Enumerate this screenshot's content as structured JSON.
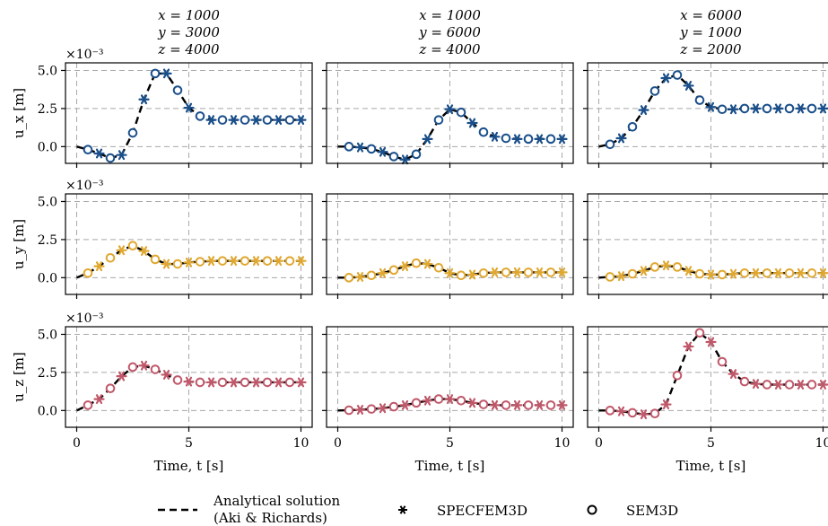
{
  "legend": {
    "analytical_line1": "Analytical solution",
    "analytical_line2": "(Aki & Richards)",
    "specfem": "SPECFEM3D",
    "sem": "SEM3D"
  },
  "chart_data": {
    "type": "line",
    "x_label": "Time, t  [s]",
    "y_labels": [
      "u_x  [m]",
      "u_y  [m]",
      "u_z  [m]"
    ],
    "y_scale_label": "×10⁻³",
    "xlim": [
      -0.5,
      10.5
    ],
    "ylim": [
      -1.1,
      5.5
    ],
    "x_ticks": [
      0,
      5,
      10
    ],
    "y_ticks": [
      0.0,
      2.5,
      5.0
    ],
    "y_tick_labels": [
      "0.0",
      "2.5",
      "5.0"
    ],
    "grid": true,
    "legend_position": "bottom",
    "series_colors": {
      "u_x": "#1a4f8a",
      "u_y": "#e0a830",
      "u_z": "#c0586a"
    },
    "columns": [
      {
        "title_lines": [
          "x = 1000",
          "y = 3000",
          "z = 4000"
        ]
      },
      {
        "title_lines": [
          "x = 1000",
          "y = 6000",
          "z = 4000"
        ]
      },
      {
        "title_lines": [
          "x = 6000",
          "y = 1000",
          "z = 2000"
        ]
      }
    ],
    "panels": [
      {
        "component": "u_x",
        "column": 0,
        "x": [
          0,
          0.5,
          1,
          1.5,
          2,
          2.5,
          3,
          3.5,
          4,
          4.5,
          5,
          5.5,
          6,
          6.5,
          7,
          7.5,
          8,
          8.5,
          9,
          9.5,
          10
        ],
        "y": [
          0,
          -0.2,
          -0.45,
          -0.75,
          -0.55,
          0.9,
          3.1,
          4.8,
          4.8,
          3.7,
          2.55,
          2.0,
          1.75,
          1.75,
          1.75,
          1.75,
          1.75,
          1.75,
          1.75,
          1.75,
          1.75
        ]
      },
      {
        "component": "u_x",
        "column": 1,
        "x": [
          0,
          0.5,
          1,
          1.5,
          2,
          2.5,
          3,
          3.5,
          4,
          4.5,
          5,
          5.5,
          6,
          6.5,
          7,
          7.5,
          8,
          8.5,
          9,
          9.5,
          10
        ],
        "y": [
          0,
          0,
          -0.05,
          -0.15,
          -0.35,
          -0.65,
          -0.85,
          -0.5,
          0.5,
          1.75,
          2.45,
          2.25,
          1.55,
          0.95,
          0.65,
          0.55,
          0.5,
          0.5,
          0.5,
          0.5,
          0.5
        ]
      },
      {
        "component": "u_x",
        "column": 2,
        "x": [
          0,
          0.5,
          1,
          1.5,
          2,
          2.5,
          3,
          3.5,
          4,
          4.5,
          5,
          5.5,
          6,
          6.5,
          7,
          7.5,
          8,
          8.5,
          9,
          9.5,
          10
        ],
        "y": [
          0,
          0.15,
          0.55,
          1.3,
          2.4,
          3.65,
          4.5,
          4.7,
          4.0,
          3.05,
          2.6,
          2.45,
          2.45,
          2.5,
          2.5,
          2.5,
          2.5,
          2.5,
          2.5,
          2.5,
          2.5
        ]
      },
      {
        "component": "u_y",
        "column": 0,
        "x": [
          0,
          0.5,
          1,
          1.5,
          2,
          2.5,
          3,
          3.5,
          4,
          4.5,
          5,
          5.5,
          6,
          6.5,
          7,
          7.5,
          8,
          8.5,
          9,
          9.5,
          10
        ],
        "y": [
          0,
          0.3,
          0.75,
          1.3,
          1.8,
          2.1,
          1.75,
          1.2,
          0.9,
          0.9,
          1.0,
          1.05,
          1.1,
          1.1,
          1.1,
          1.1,
          1.1,
          1.1,
          1.1,
          1.1,
          1.1
        ]
      },
      {
        "component": "u_y",
        "column": 1,
        "x": [
          0,
          0.5,
          1,
          1.5,
          2,
          2.5,
          3,
          3.5,
          4,
          4.5,
          5,
          5.5,
          6,
          6.5,
          7,
          7.5,
          8,
          8.5,
          9,
          9.5,
          10
        ],
        "y": [
          0,
          0,
          0.05,
          0.15,
          0.3,
          0.5,
          0.75,
          0.95,
          0.9,
          0.65,
          0.3,
          0.15,
          0.2,
          0.3,
          0.35,
          0.35,
          0.35,
          0.35,
          0.35,
          0.35,
          0.35
        ]
      },
      {
        "component": "u_y",
        "column": 2,
        "x": [
          0,
          0.5,
          1,
          1.5,
          2,
          2.5,
          3,
          3.5,
          4,
          4.5,
          5,
          5.5,
          6,
          6.5,
          7,
          7.5,
          8,
          8.5,
          9,
          9.5,
          10
        ],
        "y": [
          0,
          0.05,
          0.1,
          0.25,
          0.45,
          0.7,
          0.8,
          0.7,
          0.45,
          0.25,
          0.2,
          0.2,
          0.25,
          0.3,
          0.3,
          0.3,
          0.3,
          0.3,
          0.3,
          0.3,
          0.3
        ]
      },
      {
        "component": "u_z",
        "column": 0,
        "x": [
          0,
          0.5,
          1,
          1.5,
          2,
          2.5,
          3,
          3.5,
          4,
          4.5,
          5,
          5.5,
          6,
          6.5,
          7,
          7.5,
          8,
          8.5,
          9,
          9.5,
          10
        ],
        "y": [
          0,
          0.35,
          0.75,
          1.45,
          2.25,
          2.85,
          2.95,
          2.7,
          2.35,
          2.0,
          1.9,
          1.85,
          1.85,
          1.85,
          1.85,
          1.85,
          1.85,
          1.85,
          1.85,
          1.85,
          1.85
        ]
      },
      {
        "component": "u_z",
        "column": 1,
        "x": [
          0,
          0.5,
          1,
          1.5,
          2,
          2.5,
          3,
          3.5,
          4,
          4.5,
          5,
          5.5,
          6,
          6.5,
          7,
          7.5,
          8,
          8.5,
          9,
          9.5,
          10
        ],
        "y": [
          0,
          0.02,
          0.05,
          0.1,
          0.15,
          0.25,
          0.35,
          0.5,
          0.65,
          0.75,
          0.75,
          0.65,
          0.5,
          0.4,
          0.35,
          0.35,
          0.35,
          0.35,
          0.35,
          0.35,
          0.35
        ]
      },
      {
        "component": "u_z",
        "column": 2,
        "x": [
          0,
          0.5,
          1,
          1.5,
          2,
          2.5,
          3,
          3.5,
          4,
          4.5,
          5,
          5.5,
          6,
          6.5,
          7,
          7.5,
          8,
          8.5,
          9,
          9.5,
          10
        ],
        "y": [
          0,
          0,
          -0.05,
          -0.15,
          -0.25,
          -0.2,
          0.4,
          2.3,
          4.2,
          5.1,
          4.5,
          3.2,
          2.4,
          1.9,
          1.75,
          1.7,
          1.7,
          1.7,
          1.7,
          1.7,
          1.7
        ]
      }
    ]
  }
}
